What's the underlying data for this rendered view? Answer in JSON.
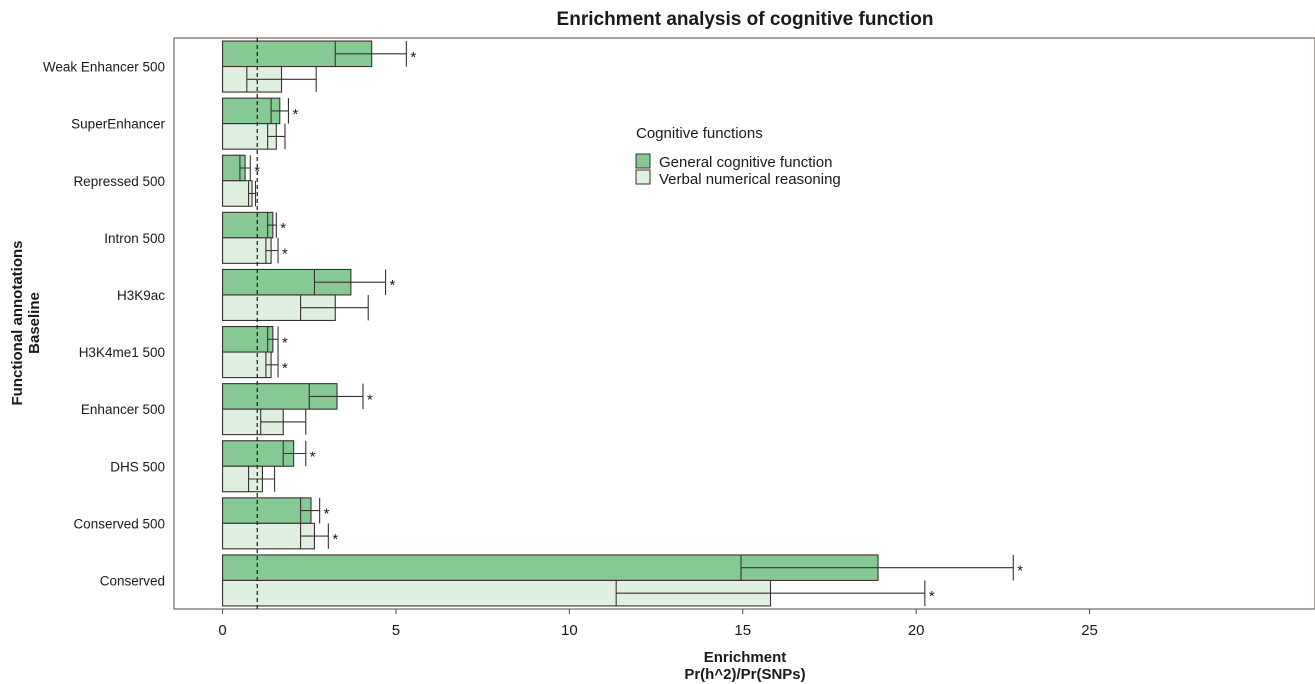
{
  "chart_data": {
    "type": "bar",
    "orientation": "horizontal",
    "title": "Enrichment analysis of cognitive function",
    "xlabel_line1": "Enrichment",
    "xlabel_line2": "Pr(h^2)/Pr(SNPs)",
    "ylabel_line1": "Functional annotations",
    "ylabel_line2": "Baseline",
    "xlim": [
      -1.4,
      31.5
    ],
    "xticks": [
      0,
      5,
      10,
      15,
      20,
      25
    ],
    "reference_line": 1,
    "categories": [
      "Weak Enhancer 500",
      "SuperEnhancer",
      "Repressed 500",
      "Intron 500",
      "H3K9ac",
      "H3K4me1 500",
      "Enhancer 500",
      "DHS 500",
      "Conserved 500",
      "Conserved"
    ],
    "legend": {
      "title": "Cognitive functions",
      "position": "top-center"
    },
    "series": [
      {
        "name": "General cognitive function",
        "color": "#86c995",
        "values": [
          4.3,
          1.65,
          0.65,
          1.45,
          3.7,
          1.45,
          3.3,
          2.05,
          2.55,
          18.9
        ],
        "lower": [
          3.25,
          1.4,
          0.5,
          1.3,
          2.65,
          1.3,
          2.5,
          1.75,
          2.25,
          14.95
        ],
        "upper": [
          5.3,
          1.9,
          0.8,
          1.55,
          4.7,
          1.6,
          4.05,
          2.4,
          2.8,
          22.8
        ],
        "significant": [
          true,
          true,
          true,
          true,
          true,
          true,
          true,
          true,
          true,
          true
        ]
      },
      {
        "name": "Verbal numerical reasoning",
        "color": "#e0f0e0",
        "values": [
          1.7,
          1.55,
          0.85,
          1.4,
          3.25,
          1.4,
          1.75,
          1.15,
          2.65,
          15.8
        ],
        "lower": [
          0.7,
          1.3,
          0.75,
          1.25,
          2.25,
          1.25,
          1.1,
          0.75,
          2.25,
          11.35
        ],
        "upper": [
          2.7,
          1.8,
          0.95,
          1.6,
          4.2,
          1.6,
          2.4,
          1.5,
          3.05,
          20.25
        ],
        "significant": [
          false,
          false,
          false,
          true,
          false,
          true,
          false,
          false,
          true,
          true
        ]
      }
    ],
    "star_label": "*"
  }
}
